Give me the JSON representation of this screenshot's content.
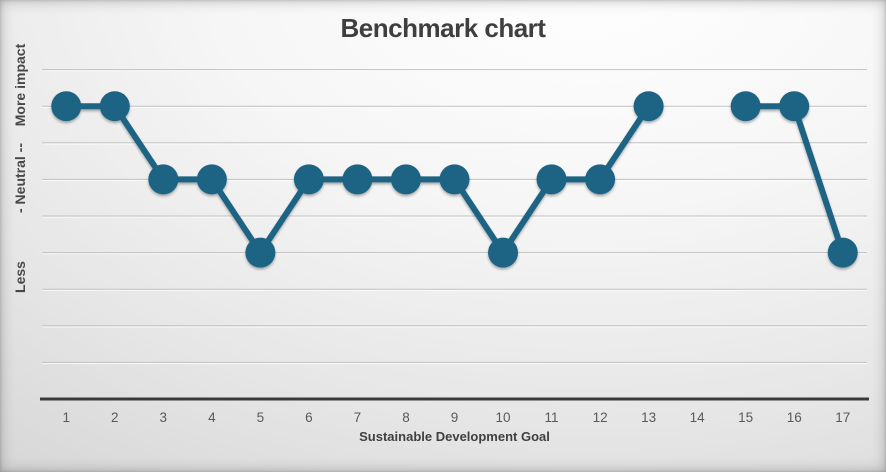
{
  "chart": {
    "title": "Benchmark chart",
    "x_axis_title": "Sustainable Development Goal",
    "y_axis_labels": {
      "top": "More impact",
      "middle": "- Neutral --",
      "bottom": "Less"
    }
  },
  "chart_data": {
    "type": "line",
    "title": "Benchmark chart",
    "xlabel": "Sustainable Development Goal",
    "ylabel": "",
    "categories": [
      "1",
      "2",
      "3",
      "4",
      "5",
      "6",
      "7",
      "8",
      "9",
      "10",
      "11",
      "12",
      "13",
      "14",
      "15",
      "16",
      "17"
    ],
    "values": [
      8,
      8,
      6,
      6,
      4,
      6,
      6,
      6,
      6,
      4,
      6,
      6,
      8,
      null,
      8,
      8,
      4
    ],
    "y_level_labels": [
      {
        "label": "More impact",
        "value": 8
      },
      {
        "label": "- Neutral --",
        "value": 6
      },
      {
        "label": "Less",
        "value": 4
      }
    ],
    "ylim": [
      0,
      9
    ],
    "gridline_step": 1,
    "grid": "horizontal",
    "legend": "none",
    "marker": "circle",
    "gap_categories": [
      "14"
    ],
    "colors": {
      "series": "#1e6384",
      "axis_line": "#3a3a3a",
      "grid_line": "#c1c1c1",
      "title_text": "#3f3f3f",
      "tick_text": "#595959"
    }
  }
}
